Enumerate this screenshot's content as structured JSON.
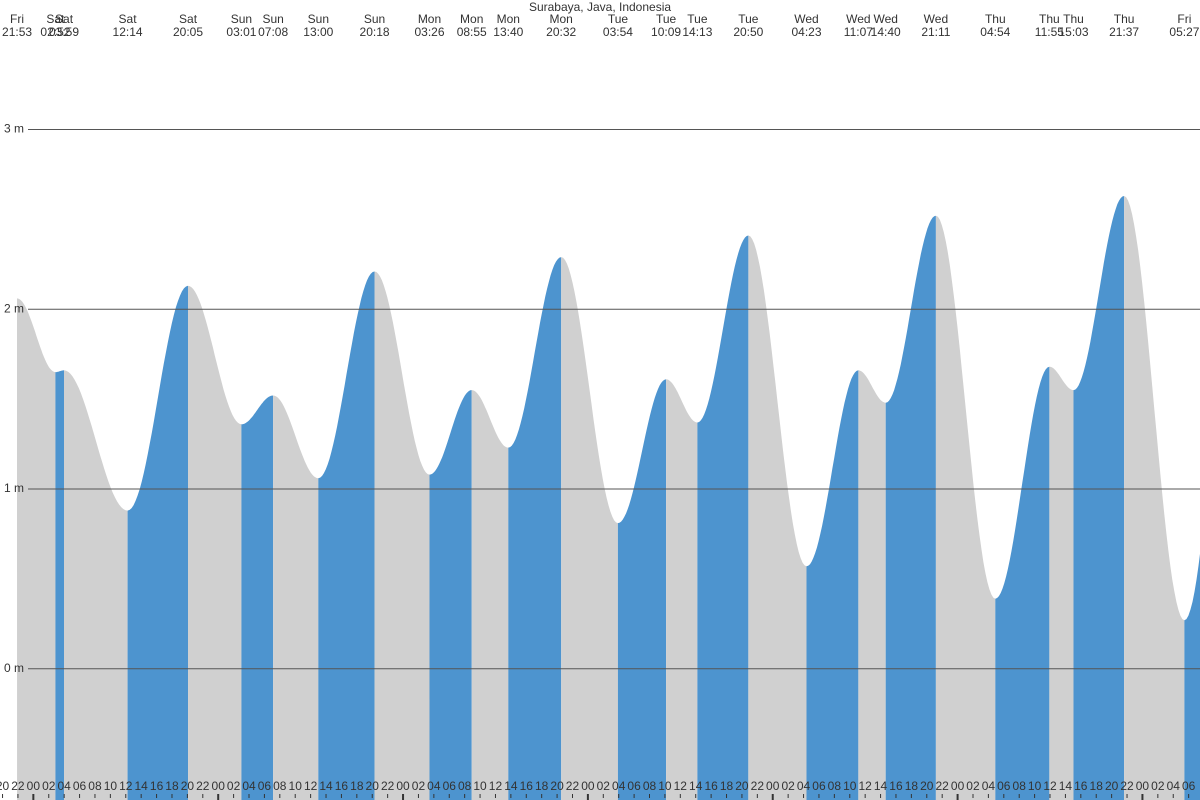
{
  "chart_data": {
    "type": "tide",
    "title": "Surabaya, Java, Indonesia",
    "days": [
      "Fri",
      "Sat",
      "Sat",
      "Sat",
      "Sat",
      "Sun",
      "Sun",
      "Sun",
      "Sun",
      "Mon",
      "Mon",
      "Mon",
      "Mon",
      "Tue",
      "Tue",
      "Tue",
      "Tue",
      "Wed",
      "Wed",
      "Wed",
      "Wed",
      "Thu",
      "Thu",
      "Thu",
      "Thu",
      "Fri"
    ],
    "times": [
      "21:53",
      "02:52",
      "03:59",
      "12:14",
      "20:05",
      "03:01",
      "07:08",
      "13:00",
      "20:18",
      "03:26",
      "08:55",
      "13:40",
      "20:32",
      "03:54",
      "10:09",
      "14:13",
      "20:50",
      "04:23",
      "11:07",
      "14:40",
      "21:11",
      "04:54",
      "11:55",
      "15:03",
      "21:37",
      "05:27"
    ],
    "values": [
      2.06,
      1.65,
      1.66,
      0.88,
      2.13,
      1.36,
      1.52,
      1.06,
      2.21,
      1.08,
      1.55,
      1.23,
      2.29,
      0.81,
      1.61,
      1.37,
      2.41,
      0.57,
      1.66,
      1.48,
      2.52,
      0.39,
      1.68,
      1.55,
      2.63,
      0.27
    ],
    "rising_color": "#4d94cf",
    "falling_color": "#d0d0d0",
    "ylim": [
      -0.73,
      3.72
    ],
    "yticks": [
      {
        "value": 0,
        "label": "0 m"
      },
      {
        "value": 1,
        "label": "1 m"
      },
      {
        "value": 2,
        "label": "2 m"
      },
      {
        "value": 3,
        "label": "3 m"
      }
    ],
    "grid": true,
    "hour_labels": [
      "20",
      "22",
      "00",
      "02",
      "04",
      "06",
      "08",
      "10",
      "12",
      "14",
      "16",
      "18",
      "20",
      "22",
      "00",
      "02",
      "04",
      "06",
      "08",
      "10",
      "12",
      "14",
      "16",
      "18",
      "20",
      "22",
      "00",
      "02",
      "04",
      "06",
      "08",
      "10",
      "12",
      "14",
      "16",
      "18",
      "20",
      "22",
      "00",
      "02",
      "04",
      "06",
      "08",
      "10",
      "12",
      "14",
      "16",
      "18",
      "20",
      "22",
      "00",
      "02",
      "04",
      "06",
      "08",
      "10",
      "12",
      "14",
      "16",
      "18",
      "20",
      "22",
      "00",
      "02",
      "04",
      "06",
      "08",
      "10",
      "12",
      "14",
      "16",
      "18",
      "20",
      "22",
      "00",
      "02",
      "04",
      "06"
    ]
  }
}
